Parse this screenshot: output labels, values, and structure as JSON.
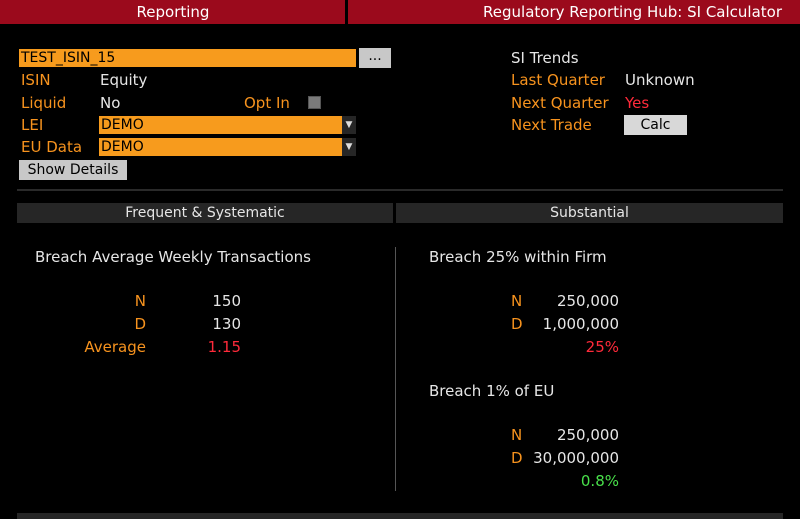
{
  "tabs": {
    "left": "Reporting",
    "right": "Regulatory Reporting Hub: SI Calculator"
  },
  "form": {
    "isin_input": "TEST_ISIN_15",
    "browse_label": "...",
    "isin_label": "ISIN",
    "isin_value": "Equity",
    "liquid_label": "Liquid",
    "liquid_value": "No",
    "optin_label": "Opt In",
    "lei_label": "LEI",
    "lei_value": "DEMO",
    "eudata_label": "EU Data",
    "eudata_value": "DEMO",
    "show_details": "Show Details"
  },
  "trends": {
    "title": "SI Trends",
    "last_quarter_label": "Last Quarter",
    "last_quarter_value": "Unknown",
    "next_quarter_label": "Next Quarter",
    "next_quarter_value": "Yes",
    "next_trade_label": "Next Trade",
    "calc_label": "Calc"
  },
  "frequent": {
    "header": "Frequent & Systematic",
    "title": "Breach Average Weekly Transactions",
    "n_label": "N",
    "n_value": "150",
    "d_label": "D",
    "d_value": "130",
    "avg_label": "Average",
    "avg_value": "1.15"
  },
  "substantial": {
    "header": "Substantial",
    "firm_title": "Breach 25% within Firm",
    "firm_n_label": "N",
    "firm_n_value": "250,000",
    "firm_d_label": "D",
    "firm_d_value": "1,000,000",
    "firm_result": "25%",
    "eu_title": "Breach 1% of EU",
    "eu_n_label": "N",
    "eu_n_value": "250,000",
    "eu_d_label": "D",
    "eu_d_value": "30,000,000",
    "eu_result": "0.8%"
  },
  "colors": {
    "accent_orange": "#f79b1d",
    "tab_red": "#9b0a1c",
    "value_red": "#ff2a3a",
    "value_green": "#48e04a"
  }
}
